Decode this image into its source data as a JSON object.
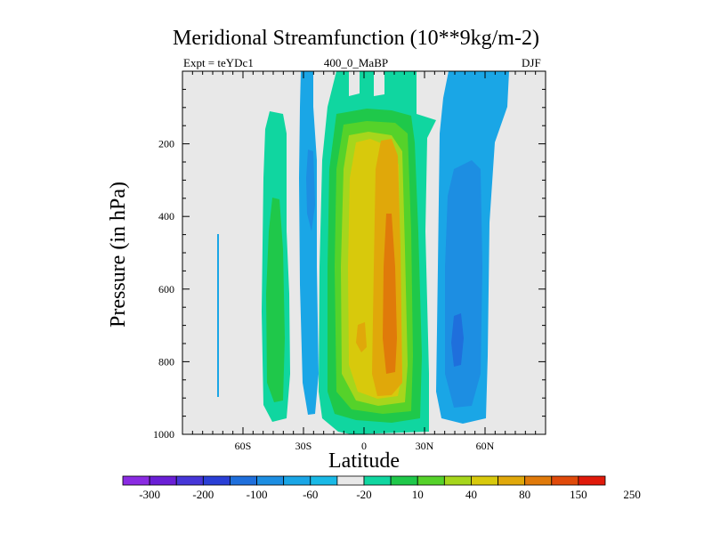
{
  "chart_data": {
    "type": "heatmap",
    "subtype": "filled-contour",
    "title": "Meridional Streamfunction (10**9kg/m-2)",
    "subtitle_left": "Expt = teYDc1",
    "subtitle_center": "400_0_MaBP",
    "subtitle_right": "DJF",
    "xlabel": "Latitude",
    "ylabel": "Pressure (in hPa)",
    "xlim": [
      -90,
      90
    ],
    "ylim": [
      1000,
      0
    ],
    "x_ticks": [
      {
        "value": -60,
        "label": "60S"
      },
      {
        "value": -30,
        "label": "30S"
      },
      {
        "value": 0,
        "label": "0"
      },
      {
        "value": 30,
        "label": "30N"
      },
      {
        "value": 60,
        "label": "60N"
      }
    ],
    "y_ticks": [
      {
        "value": 200,
        "label": "200"
      },
      {
        "value": 400,
        "label": "400"
      },
      {
        "value": 600,
        "label": "600"
      },
      {
        "value": 800,
        "label": "800"
      },
      {
        "value": 1000,
        "label": "1000"
      }
    ],
    "colorbar": {
      "levels": [
        "-300",
        "-200",
        "-100",
        "-60",
        "-20",
        "10",
        "40",
        "80",
        "150",
        "250"
      ],
      "colors": [
        "#8a2be2",
        "#6a1fd6",
        "#4636d8",
        "#2a3fd6",
        "#1f6fdc",
        "#1d8ee2",
        "#1aa6e6",
        "#19b9e6",
        "#e8e8e8",
        "#10d6a0",
        "#1fc84a",
        "#55d22a",
        "#a6d61c",
        "#d8c90c",
        "#e0a80a",
        "#e07a0a",
        "#e04a0a",
        "#e01a0a"
      ]
    },
    "regions": [
      {
        "name": "weak-negative-sliver-60S",
        "value": "-20 to -10",
        "lat": [
          -73.5,
          -72.5
        ],
        "pressure": [
          450,
          890
        ]
      },
      {
        "name": "positive-cell-45S",
        "value": "10 to 40",
        "lat": [
          -49,
          -37
        ],
        "pressure": [
          100,
          960
        ]
      },
      {
        "name": "negative-band-30S",
        "value": "-20 to -10",
        "lat": [
          -31,
          -24
        ],
        "pressure": [
          0,
          960
        ]
      },
      {
        "name": "positive-cell-tropics",
        "value": "10 to 80+",
        "lat": [
          -18,
          34
        ],
        "pressure": [
          0,
          990
        ]
      },
      {
        "name": "peak-cell-15N",
        "value": ">150",
        "lat": [
          10,
          18
        ],
        "pressure": [
          500,
          880
        ]
      },
      {
        "name": "negative-cell-50N",
        "value": "-60 to -10",
        "lat": [
          41,
          64
        ],
        "pressure": [
          0,
          970
        ]
      }
    ]
  }
}
